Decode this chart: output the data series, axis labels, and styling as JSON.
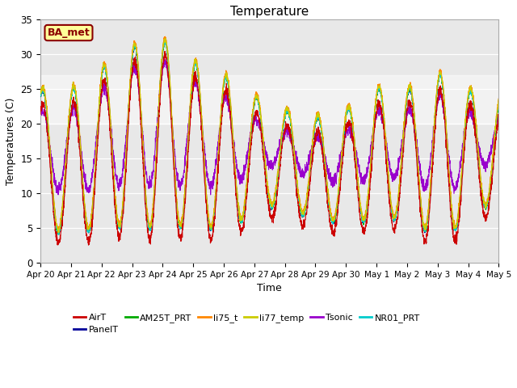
{
  "title": "Temperature",
  "xlabel": "Time",
  "ylabel": "Temperatures (C)",
  "ylim": [
    0,
    35
  ],
  "annotation": "BA_met",
  "bg_color": "#e8e8e8",
  "series_colors": {
    "AirT": "#cc0000",
    "PanelT": "#000099",
    "AM25T_PRT": "#00aa00",
    "li75_t": "#ff8800",
    "li77_temp": "#cccc00",
    "Tsonic": "#9900cc",
    "NR01_PRT": "#00cccc"
  },
  "tick_labels": [
    "Apr 20",
    "Apr 21",
    "Apr 22",
    "Apr 23",
    "Apr 24",
    "Apr 25",
    "Apr 26",
    "Apr 27",
    "Apr 28",
    "Apr 29",
    "Apr 30",
    "May 1",
    "May 2",
    "May 3",
    "May 4",
    "May 5"
  ],
  "n_points": 3000
}
